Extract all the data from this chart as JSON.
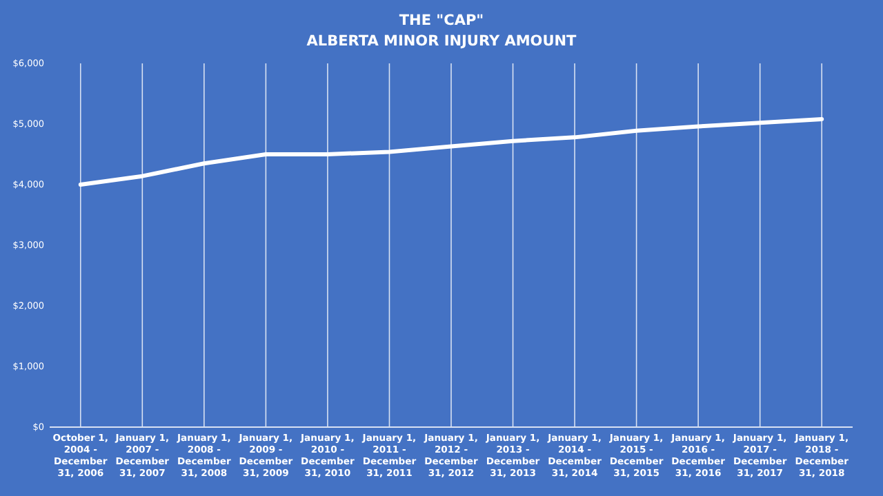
{
  "chart_data": {
    "type": "line",
    "title": "THE \"CAP\"",
    "subtitle": "ALBERTA MINOR INJURY AMOUNT",
    "categories": [
      "October 1, 2004 - December 31, 2006",
      "January 1, 2007 - December 31, 2007",
      "January 1, 2008 - December 31, 2008",
      "January 1, 2009 - December 31, 2009",
      "January 1, 2010 - December 31, 2010",
      "January 1, 2011 - December 31, 2011",
      "January 1, 2012 - December 31, 2012",
      "January 1, 2013 - December 31, 2013",
      "January 1, 2014 - December 31, 2014",
      "January 1, 2015 - December 31, 2015",
      "January 1, 2016 - December 31, 2016",
      "January 1, 2017 - December 31, 2017",
      "January 1, 2018 - December 31, 2018"
    ],
    "series": [
      {
        "color": "#ffffff",
        "values": [
          4000,
          4140,
          4350,
          4500,
          4500,
          4540,
          4630,
          4720,
          4780,
          4890,
          4960,
          5020,
          5080
        ]
      }
    ],
    "ylim": [
      0,
      6000
    ],
    "yticks": [
      {
        "value": 0,
        "label": "$0"
      },
      {
        "value": 1000,
        "label": "$1,000"
      },
      {
        "value": 2000,
        "label": "$2,000"
      },
      {
        "value": 3000,
        "label": "$3,000"
      },
      {
        "value": 4000,
        "label": "$4,000"
      },
      {
        "value": 5000,
        "label": "$5,000"
      },
      {
        "value": 6000,
        "label": "$6,000"
      }
    ],
    "grid": "x",
    "marker": "none",
    "line_style": "solid"
  }
}
